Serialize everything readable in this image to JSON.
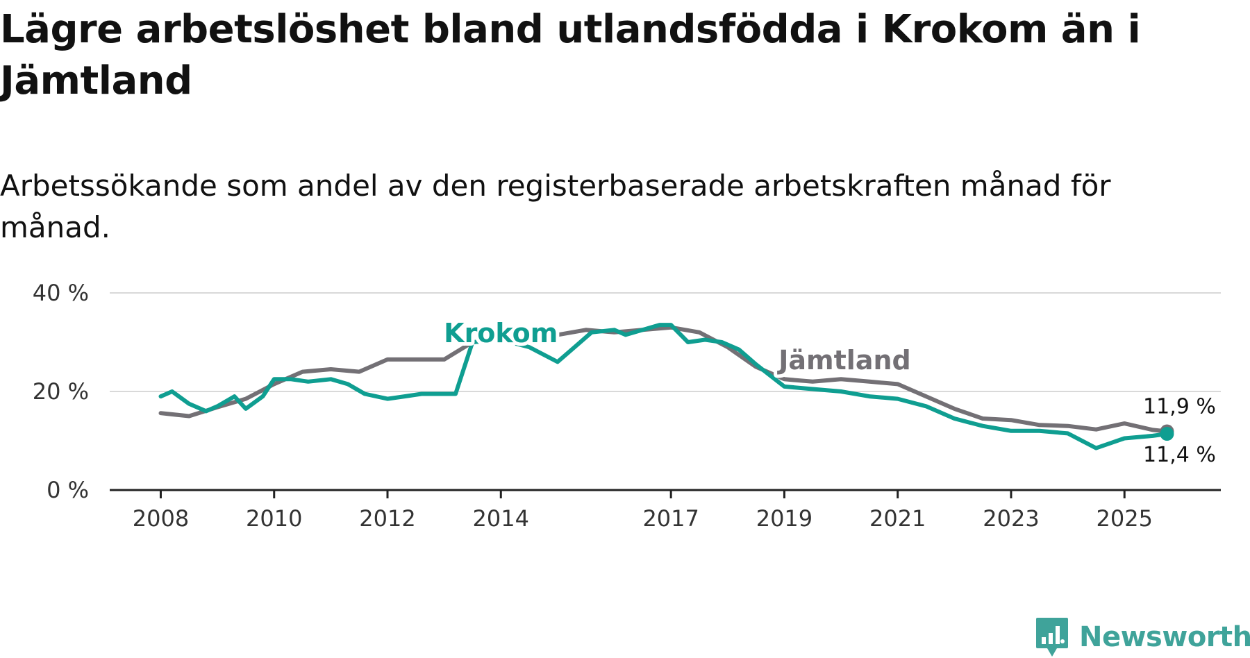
{
  "header": {
    "title": "Lägre arbetslöshet bland utlandsfödda i Krokom än i Jämtland",
    "subtitle": "Arbetssökande som andel av den registerbaserade arbetskraften månad för månad."
  },
  "brand": {
    "name": "Newsworthy",
    "color": "#3fa39a"
  },
  "chart_data": {
    "type": "line",
    "title": "Lägre arbetslöshet bland utlandsfödda i Krokom än i Jämtland",
    "subtitle": "Arbetssökande som andel av den registerbaserade arbetskraften månad för månad.",
    "xlabel": "",
    "ylabel": "",
    "x_tick_labels": [
      "2008",
      "2010",
      "2012",
      "2014",
      "2017",
      "2019",
      "2021",
      "2023",
      "2025"
    ],
    "x_tick_values": [
      2008.0,
      2010.0,
      2012.0,
      2014.0,
      2017.0,
      2019.0,
      2021.0,
      2023.0,
      2025.0
    ],
    "y_tick_labels": [
      "0 %",
      "20 %",
      "40 %"
    ],
    "y_tick_values": [
      0,
      20,
      40
    ],
    "xlim": [
      2007.1,
      2026.7
    ],
    "ylim": [
      0,
      40
    ],
    "grid": true,
    "series": [
      {
        "name": "Jämtland",
        "color": "#737075",
        "label": "Jämtland",
        "end_label": "11,9 %",
        "x": [
          2008.0,
          2008.5,
          2009.0,
          2009.5,
          2010.0,
          2010.5,
          2011.0,
          2011.5,
          2012.0,
          2012.5,
          2013.0,
          2013.5,
          2014.0,
          2014.5,
          2015.0,
          2015.5,
          2016.0,
          2016.5,
          2017.0,
          2017.5,
          2018.0,
          2018.5,
          2019.0,
          2019.5,
          2020.0,
          2020.5,
          2021.0,
          2021.5,
          2022.0,
          2022.5,
          2023.0,
          2023.5,
          2024.0,
          2024.5,
          2025.0,
          2025.5,
          2025.75
        ],
        "y": [
          15.6,
          15.0,
          16.8,
          18.5,
          21.5,
          24.0,
          24.5,
          24.0,
          26.5,
          26.5,
          26.5,
          30.0,
          30.5,
          30.5,
          31.5,
          32.5,
          32.0,
          32.5,
          33.0,
          32.0,
          29.0,
          25.0,
          22.5,
          22.0,
          22.5,
          22.0,
          21.5,
          19.0,
          16.5,
          14.5,
          14.2,
          13.2,
          13.0,
          12.3,
          13.5,
          12.2,
          11.9
        ]
      },
      {
        "name": "Krokom",
        "color": "#0f9e91",
        "label": "Krokom",
        "end_label": "11,4 %",
        "x": [
          2008.0,
          2008.2,
          2008.5,
          2008.8,
          2009.0,
          2009.3,
          2009.5,
          2009.8,
          2010.0,
          2010.3,
          2010.6,
          2011.0,
          2011.3,
          2011.6,
          2012.0,
          2012.3,
          2012.6,
          2013.0,
          2013.2,
          2013.5,
          2014.0,
          2014.5,
          2015.0,
          2015.3,
          2015.6,
          2016.0,
          2016.2,
          2016.5,
          2016.8,
          2017.0,
          2017.3,
          2017.6,
          2017.9,
          2018.2,
          2018.5,
          2019.0,
          2019.5,
          2020.0,
          2020.5,
          2021.0,
          2021.5,
          2022.0,
          2022.5,
          2023.0,
          2023.5,
          2024.0,
          2024.5,
          2025.0,
          2025.5,
          2025.75
        ],
        "y": [
          19.0,
          20.0,
          17.5,
          16.0,
          17.0,
          19.0,
          16.5,
          19.0,
          22.5,
          22.5,
          22.0,
          22.5,
          21.5,
          19.5,
          18.5,
          19.0,
          19.5,
          19.5,
          19.5,
          30.0,
          30.5,
          29.0,
          26.0,
          29.0,
          32.0,
          32.5,
          31.5,
          32.5,
          33.5,
          33.5,
          30.0,
          30.5,
          30.0,
          28.5,
          25.5,
          21.0,
          20.5,
          20.0,
          19.0,
          18.5,
          17.0,
          14.5,
          13.0,
          12.0,
          12.0,
          11.5,
          8.5,
          10.5,
          11.0,
          11.4
        ]
      }
    ]
  }
}
